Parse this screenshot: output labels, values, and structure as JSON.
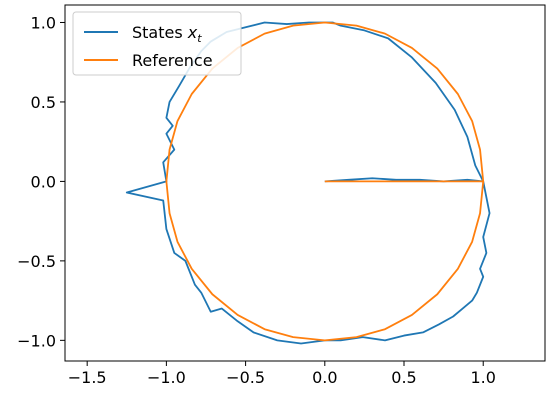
{
  "chart_data": {
    "type": "line",
    "title": "",
    "xlabel": "",
    "ylabel": "",
    "xlim": [
      -1.64,
      1.39
    ],
    "ylim": [
      -1.13,
      1.11
    ],
    "x_ticks": [
      -1.5,
      -1.0,
      -0.5,
      0.0,
      0.5,
      1.0
    ],
    "x_tick_labels": [
      "−1.5",
      "−1.0",
      "−0.5",
      "0.0",
      "0.5",
      "1.0"
    ],
    "y_ticks": [
      1.0,
      0.5,
      0.0,
      -0.5,
      -1.0
    ],
    "y_tick_labels": [
      "1.0",
      "0.5",
      "0.0",
      "−0.5",
      "−1.0"
    ],
    "grid": false,
    "legend_position": "top-left",
    "series": [
      {
        "name": "States x_t",
        "legend_label": "States x",
        "legend_subscript": "t",
        "color": "#1f77b4",
        "description_points": {
          "x": [
            0.0,
            0.15,
            0.3,
            0.45,
            0.6,
            0.75,
            0.9,
            1.0,
            1.02,
            1.04,
            1.0,
            1.02,
            0.98,
            1.0,
            0.96,
            0.93,
            0.87,
            0.81,
            0.72,
            0.62,
            0.5,
            0.38,
            0.24,
            0.1,
            0.0,
            -0.15,
            -0.3,
            -0.45,
            -0.55,
            -0.65,
            -0.72,
            -0.78,
            -0.82,
            -0.88,
            -0.95,
            -1.0,
            -1.02,
            -1.25,
            -1.0,
            -1.02,
            -0.95,
            -1.0,
            -0.96,
            -1.0,
            -0.98,
            -0.92,
            -0.85,
            -0.78,
            -0.72,
            -0.62,
            -0.5,
            -0.38,
            -0.24,
            -0.1,
            0.0,
            0.05,
            0.1,
            0.25,
            0.4,
            0.55,
            0.7,
            0.82,
            0.9,
            0.95,
            1.0
          ],
          "y": [
            0.0,
            0.01,
            0.02,
            0.01,
            0.01,
            0.0,
            0.01,
            0.0,
            -0.1,
            -0.2,
            -0.35,
            -0.45,
            -0.55,
            -0.6,
            -0.7,
            -0.75,
            -0.8,
            -0.85,
            -0.9,
            -0.95,
            -0.97,
            -1.0,
            -0.98,
            -1.0,
            -1.0,
            -1.02,
            -1.0,
            -0.95,
            -0.88,
            -0.8,
            -0.82,
            -0.7,
            -0.65,
            -0.5,
            -0.45,
            -0.3,
            -0.12,
            -0.07,
            0.0,
            0.12,
            0.2,
            0.3,
            0.35,
            0.4,
            0.5,
            0.6,
            0.72,
            0.82,
            0.88,
            0.94,
            0.97,
            1.0,
            0.99,
            1.0,
            1.0,
            1.0,
            0.98,
            0.95,
            0.9,
            0.78,
            0.62,
            0.45,
            0.28,
            0.1,
            0.0
          ]
        }
      },
      {
        "name": "Reference",
        "legend_label": "Reference",
        "color": "#ff7f0e",
        "description_points": {
          "x": [
            0.0,
            0.5,
            1.0,
            0.98,
            0.93,
            0.84,
            0.71,
            0.55,
            0.38,
            0.2,
            0.0,
            -0.2,
            -0.38,
            -0.55,
            -0.71,
            -0.84,
            -0.93,
            -0.98,
            -1.0,
            -0.98,
            -0.93,
            -0.84,
            -0.71,
            -0.55,
            -0.38,
            -0.2,
            0.0,
            0.2,
            0.38,
            0.55,
            0.71,
            0.84,
            0.93,
            0.98,
            1.0
          ],
          "y": [
            0.0,
            0.0,
            0.0,
            0.2,
            0.38,
            0.55,
            0.71,
            0.84,
            0.93,
            0.98,
            1.0,
            0.98,
            0.93,
            0.84,
            0.71,
            0.55,
            0.38,
            0.2,
            0.0,
            -0.2,
            -0.38,
            -0.55,
            -0.71,
            -0.84,
            -0.93,
            -0.98,
            -1.0,
            -0.98,
            -0.93,
            -0.84,
            -0.71,
            -0.55,
            -0.38,
            -0.2,
            0.0
          ]
        }
      }
    ]
  }
}
